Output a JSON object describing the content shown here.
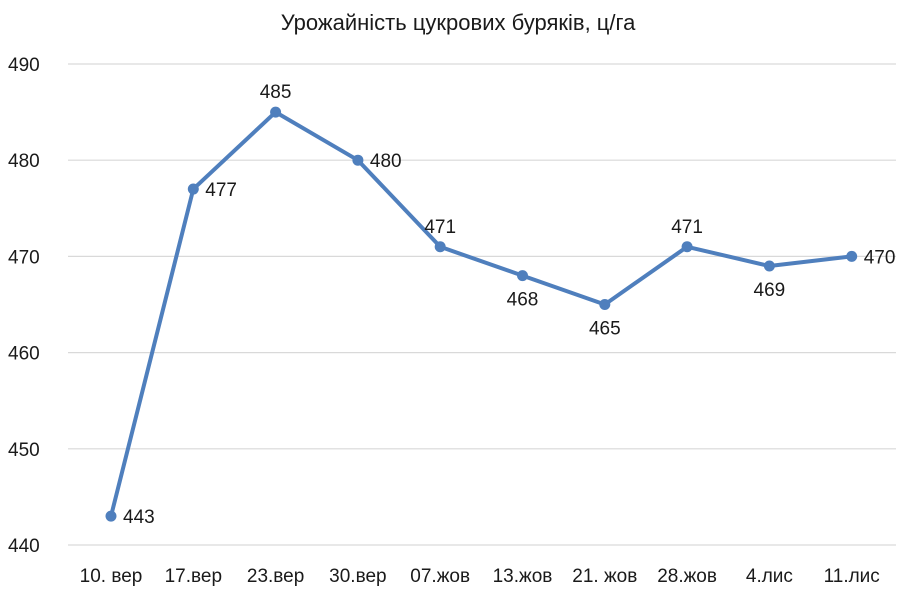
{
  "chart_data": {
    "type": "line",
    "title": "Урожайність цукрових буряків, ц/га",
    "xlabel": "",
    "ylabel": "",
    "categories": [
      "10. вер",
      "17.вер",
      "23.вер",
      "30.вер",
      "07.жов",
      "13.жов",
      "21. жов",
      "28.жов",
      "4.лис",
      "11.лис"
    ],
    "series": [
      {
        "values": [
          443,
          477,
          485,
          480,
          471,
          468,
          465,
          471,
          469,
          470
        ]
      }
    ],
    "ylim": [
      440,
      490
    ],
    "yticks": [
      "440",
      "450",
      "460",
      "470",
      "480",
      "490"
    ],
    "grid": true,
    "legend": "none",
    "line_color": "#4f7fbd",
    "grid_color": "#d9d9d9",
    "label_positions": [
      "right",
      "right",
      "above",
      "right",
      "above",
      "below",
      "below",
      "above",
      "below",
      "right"
    ]
  }
}
